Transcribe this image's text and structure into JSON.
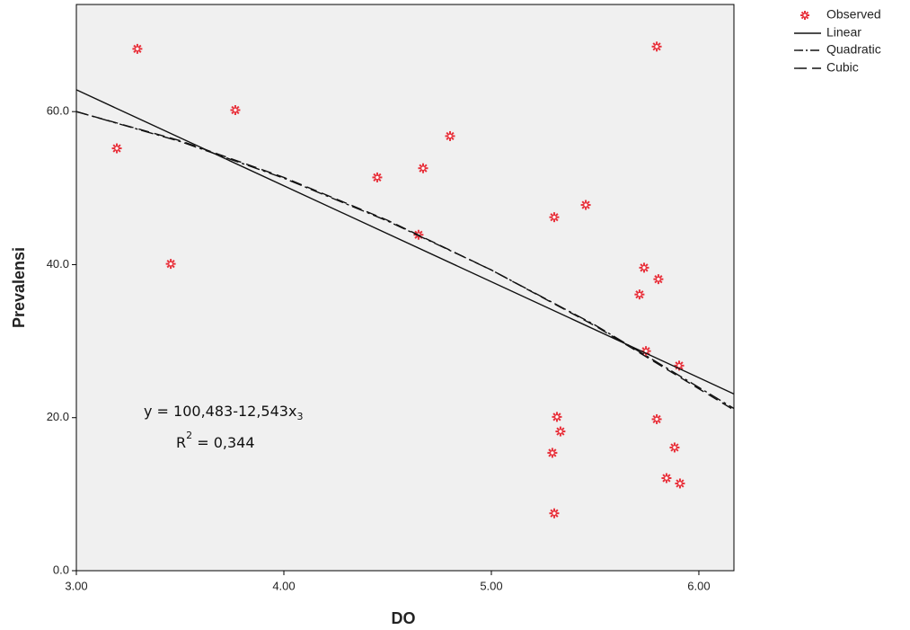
{
  "chart_data": {
    "type": "scatter",
    "x_label": "DO",
    "y_label": "Prevalensi",
    "xlim": [
      3.0,
      6.169
    ],
    "ylim": [
      0,
      74
    ],
    "xticks": [
      {
        "value": 3,
        "label": "3.00"
      },
      {
        "value": 4,
        "label": "4.00"
      },
      {
        "value": 5,
        "label": "5.00"
      },
      {
        "value": 6,
        "label": "6.00"
      }
    ],
    "yticks": [
      {
        "value": 0,
        "label": "0.0"
      },
      {
        "value": 20,
        "label": "20.0"
      },
      {
        "value": 40,
        "label": "40.0"
      },
      {
        "value": 60,
        "label": "60.0"
      }
    ],
    "background": "#f0f0f0",
    "legend": "top-right",
    "annotation": {
      "equation": "y = 100,483-12,543x",
      "equation_sub": "3",
      "r_label": "R",
      "r_sup": "2",
      "r_value": " = 0,344"
    },
    "series": [
      {
        "name": "Observed",
        "kind": "scatter",
        "color": "#e8303a",
        "x": [
          3.195,
          3.294,
          3.455,
          3.766,
          4.45,
          4.649,
          4.671,
          4.801,
          5.303,
          5.455,
          5.303,
          5.294,
          5.316,
          5.333,
          5.736,
          5.714,
          5.797,
          5.805,
          5.745,
          5.797,
          5.905,
          5.844,
          5.883,
          5.909
        ],
        "values": [
          55.2,
          68.2,
          40.1,
          60.2,
          51.4,
          43.9,
          52.6,
          56.8,
          46.2,
          47.8,
          7.5,
          15.4,
          20.1,
          18.2,
          39.6,
          36.1,
          68.5,
          38.1,
          28.7,
          19.8,
          26.8,
          12.1,
          16.1,
          11.4
        ]
      },
      {
        "name": "Linear",
        "kind": "line",
        "color": "#111111",
        "x": [
          3.0,
          6.169
        ],
        "values": [
          62.85,
          23.1
        ]
      },
      {
        "name": "Quadratic",
        "kind": "line",
        "color": "#111111",
        "x": [
          3.0,
          3.5,
          4.0,
          4.5,
          5.0,
          5.5,
          6.169
        ],
        "values": [
          60.0,
          56.1,
          51.3,
          45.7,
          39.3,
          32.1,
          21.2
        ]
      },
      {
        "name": "Cubic",
        "kind": "line",
        "color": "#111111",
        "x": [
          3.0,
          3.5,
          4.0,
          4.5,
          5.0,
          5.5,
          6.169
        ],
        "values": [
          60.0,
          56.2,
          51.4,
          45.8,
          39.3,
          32.0,
          21.0
        ]
      }
    ]
  }
}
